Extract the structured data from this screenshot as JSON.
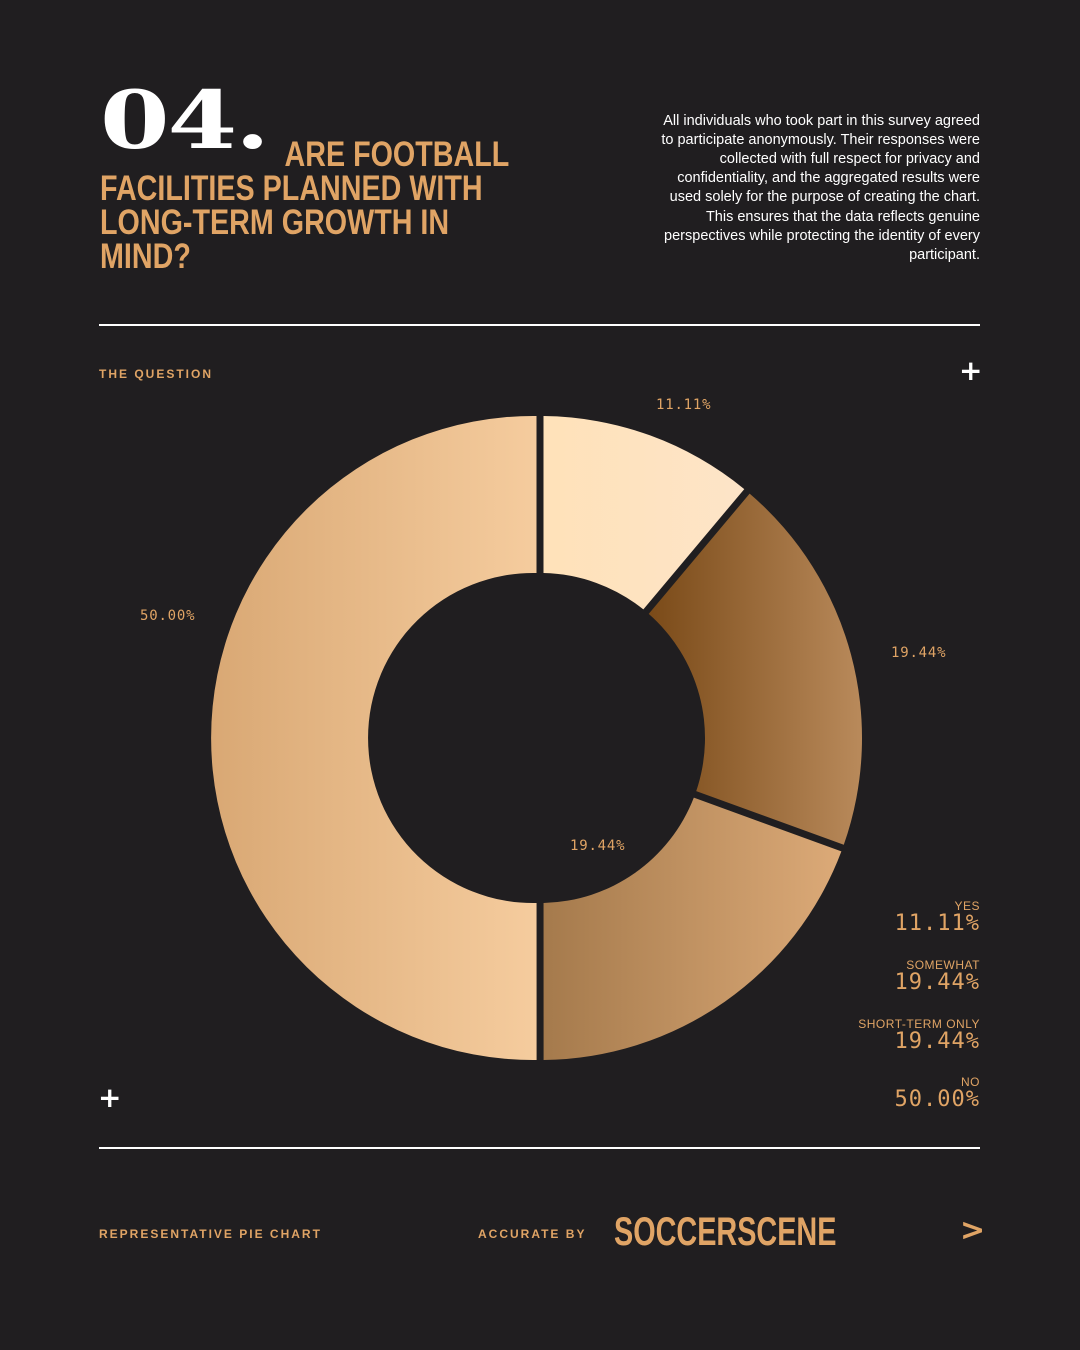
{
  "header": {
    "number": "04.",
    "title": "ARE FOOTBALL FACILITIES PLANNED WITH LONG-TERM GROWTH IN MIND?",
    "description": "All individuals who took part in this survey agreed to participate anonymously. Their responses were collected with full respect for privacy and confidentiality, and the aggregated results were used solely for the purpose of creating the chart. This ensures that the data reflects genuine perspectives while protecting the identity of every participant."
  },
  "section_label": "THE QUESTION",
  "footer": {
    "left_label": "REPRESENTATIVE PIE CHART",
    "accurate_by": "ACCURATE BY",
    "brand": "SOCCERSCENE",
    "arrow": ">"
  },
  "icons": {
    "plus": "+"
  },
  "colors": {
    "background": "#201e20",
    "accent": "#e0a465",
    "text": "#ffffff"
  },
  "chart_data": {
    "type": "pie",
    "donut": true,
    "categories": [
      "YES",
      "SOMEWHAT",
      "SHORT-TERM ONLY",
      "NO"
    ],
    "values": [
      11.11,
      19.44,
      19.44,
      50.0
    ],
    "labels": [
      "11.11%",
      "19.44%",
      "19.44%",
      "50.00%"
    ],
    "legend_placement": "bottom-right",
    "segment_colors": [
      [
        "#ffe2b9",
        "#fde4c8"
      ],
      [
        "#7a4a18",
        "#b98a5b"
      ],
      [
        "#a57a4c",
        "#dcaa78"
      ],
      [
        "#d9a874",
        "#f5cc9e"
      ]
    ]
  }
}
